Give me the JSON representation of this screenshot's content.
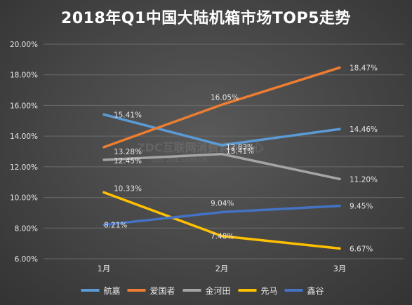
{
  "chart_data": {
    "type": "line",
    "title": "2018年Q1中国大陆机箱市场TOP5走势",
    "categories": [
      "1月",
      "2月",
      "3月"
    ],
    "ylim": [
      6,
      20
    ],
    "yticks": [
      "6.00%",
      "8.00%",
      "10.00%",
      "12.00%",
      "14.00%",
      "16.00%",
      "18.00%",
      "20.00%"
    ],
    "grid": true,
    "legend_position": "bottom",
    "series": [
      {
        "name": "航嘉",
        "color": "#5b9bd5",
        "values": [
          15.41,
          13.41,
          14.46
        ],
        "labels": [
          "15.41%",
          "13.41%",
          "14.46%"
        ]
      },
      {
        "name": "爱国者",
        "color": "#ed7d31",
        "values": [
          13.28,
          16.05,
          18.47
        ],
        "labels": [
          "13.28%",
          "16.05%",
          "18.47%"
        ]
      },
      {
        "name": "金河田",
        "color": "#a5a5a5",
        "values": [
          12.45,
          12.83,
          11.2
        ],
        "labels": [
          "12.45%",
          "12.83%",
          "11.20%"
        ]
      },
      {
        "name": "先马",
        "color": "#ffc000",
        "values": [
          10.33,
          7.48,
          6.67
        ],
        "labels": [
          "10.33%",
          "7.48%",
          "6.67%"
        ]
      },
      {
        "name": "鑫谷",
        "color": "#4472c4",
        "values": [
          8.21,
          9.04,
          9.45
        ],
        "labels": [
          "8.21%",
          "9.04%",
          "9.45%"
        ]
      }
    ]
  },
  "watermark": {
    "main": "ZDC互联网消费调研中心",
    "sub": "ZDC.ZOL.COM.CN"
  }
}
